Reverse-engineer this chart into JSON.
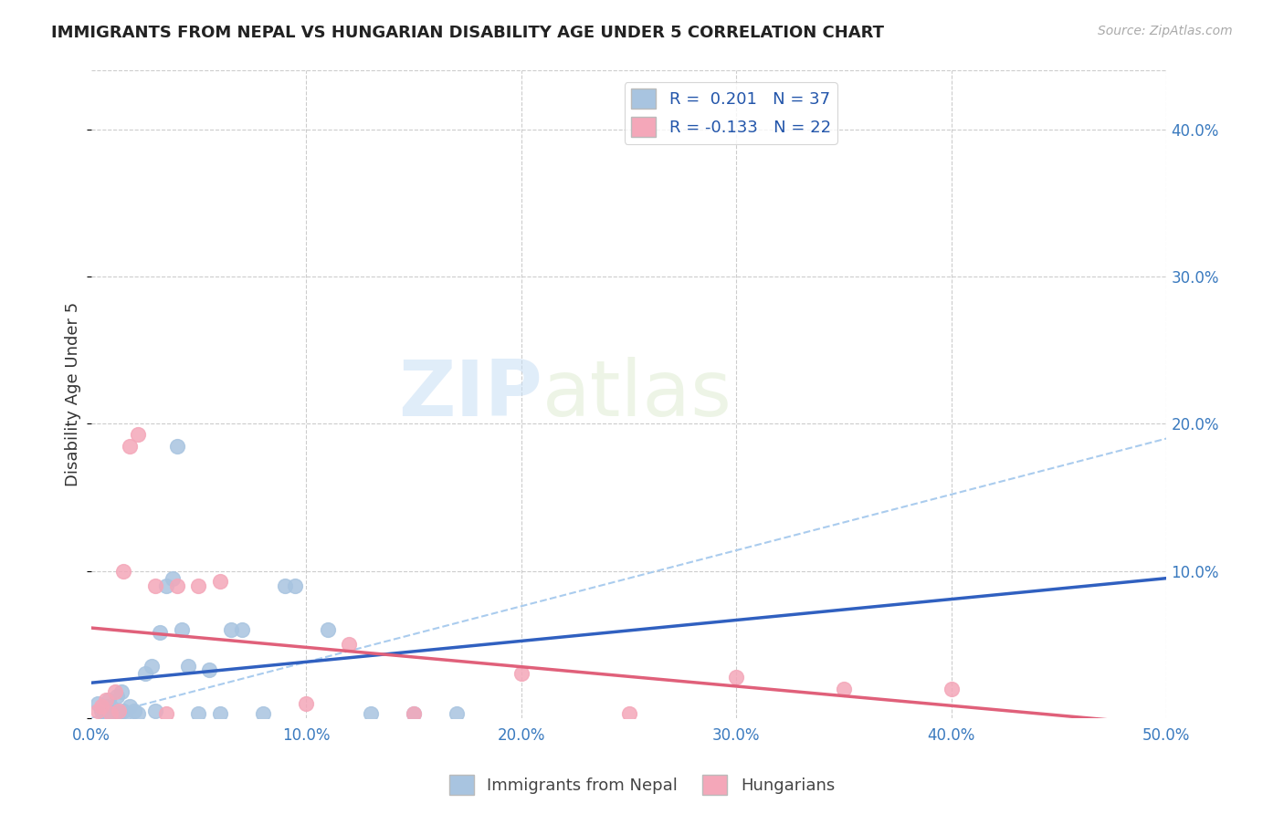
{
  "title": "IMMIGRANTS FROM NEPAL VS HUNGARIAN DISABILITY AGE UNDER 5 CORRELATION CHART",
  "source": "Source: ZipAtlas.com",
  "ylabel": "Disability Age Under 5",
  "xlabel": "",
  "xlim": [
    0.0,
    0.5
  ],
  "ylim": [
    0.0,
    0.44
  ],
  "xticks": [
    0.0,
    0.1,
    0.2,
    0.3,
    0.4,
    0.5
  ],
  "yticks": [
    0.0,
    0.1,
    0.2,
    0.3,
    0.4
  ],
  "ytick_labels": [
    "",
    "10.0%",
    "20.0%",
    "30.0%",
    "40.0%"
  ],
  "xtick_labels": [
    "0.0%",
    "10.0%",
    "20.0%",
    "30.0%",
    "40.0%",
    "50.0%"
  ],
  "nepal_color": "#a8c4e0",
  "hungarian_color": "#f4a7b9",
  "nepal_R": 0.201,
  "nepal_N": 37,
  "hungarian_R": -0.133,
  "hungarian_N": 22,
  "nepal_line_color": "#3060c0",
  "hungarian_line_color": "#e0607a",
  "trend_line_color": "#aaccee",
  "background_color": "#ffffff",
  "grid_color": "#cccccc",
  "nepal_x": [
    0.003,
    0.005,
    0.006,
    0.007,
    0.008,
    0.009,
    0.01,
    0.011,
    0.012,
    0.013,
    0.014,
    0.015,
    0.016,
    0.018,
    0.02,
    0.022,
    0.025,
    0.028,
    0.03,
    0.032,
    0.035,
    0.038,
    0.04,
    0.042,
    0.045,
    0.05,
    0.055,
    0.06,
    0.065,
    0.07,
    0.08,
    0.09,
    0.095,
    0.11,
    0.13,
    0.15,
    0.17
  ],
  "nepal_y": [
    0.01,
    0.005,
    0.003,
    0.008,
    0.012,
    0.005,
    0.007,
    0.003,
    0.015,
    0.003,
    0.018,
    0.005,
    0.003,
    0.008,
    0.005,
    0.003,
    0.03,
    0.035,
    0.005,
    0.058,
    0.09,
    0.095,
    0.185,
    0.06,
    0.035,
    0.003,
    0.033,
    0.003,
    0.06,
    0.06,
    0.003,
    0.09,
    0.09,
    0.06,
    0.003,
    0.003,
    0.003
  ],
  "hungarian_x": [
    0.003,
    0.005,
    0.007,
    0.009,
    0.011,
    0.013,
    0.015,
    0.018,
    0.022,
    0.03,
    0.035,
    0.04,
    0.05,
    0.06,
    0.1,
    0.12,
    0.15,
    0.2,
    0.25,
    0.3,
    0.35,
    0.4
  ],
  "hungarian_y": [
    0.005,
    0.008,
    0.012,
    0.003,
    0.018,
    0.005,
    0.1,
    0.185,
    0.193,
    0.09,
    0.003,
    0.09,
    0.09,
    0.093,
    0.01,
    0.05,
    0.003,
    0.03,
    0.003,
    0.028,
    0.02,
    0.02
  ],
  "watermark_zip": "ZIP",
  "watermark_atlas": "atlas",
  "legend_label_nepal": "R =  0.201   N = 37",
  "legend_label_hungarian": "R = -0.133   N = 22",
  "bottom_legend_nepal": "Immigrants from Nepal",
  "bottom_legend_hungarian": "Hungarians"
}
